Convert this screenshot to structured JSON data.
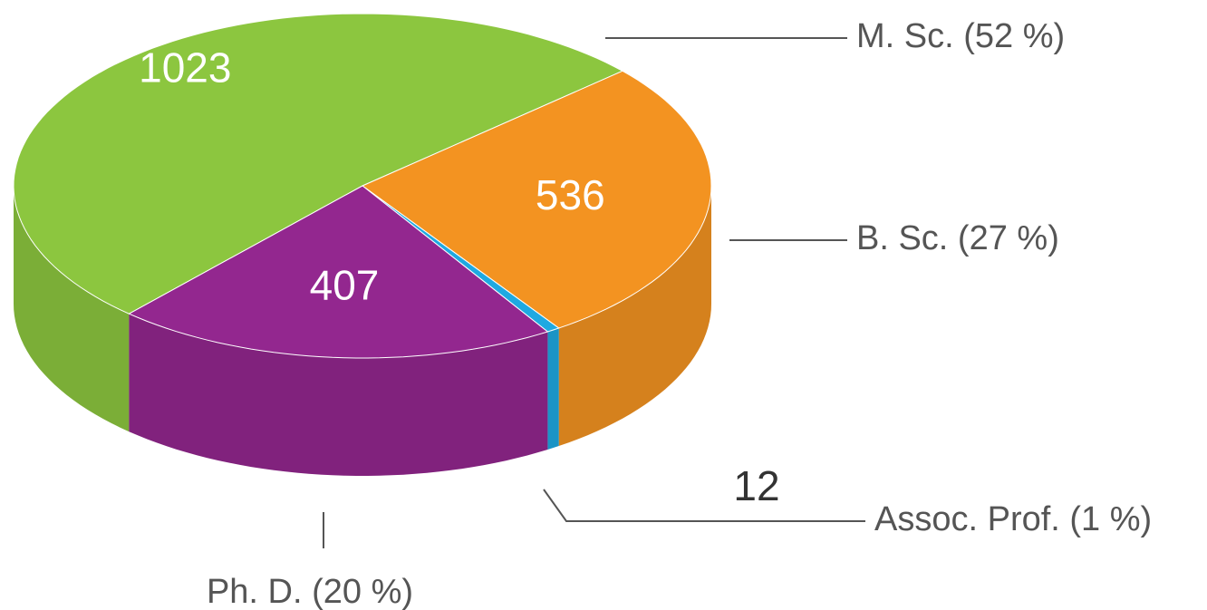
{
  "chart_data": {
    "type": "pie3d",
    "categories": [
      "M. Sc. (52 %)",
      "B. Sc. (27 %)",
      "Assoc. Prof. (1 %)",
      "Ph. D. (20 %)"
    ],
    "values": [
      1023,
      536,
      12,
      407
    ],
    "colors": [
      "#8cc63f",
      "#f39321",
      "#1fa9e1",
      "#93278f"
    ]
  }
}
